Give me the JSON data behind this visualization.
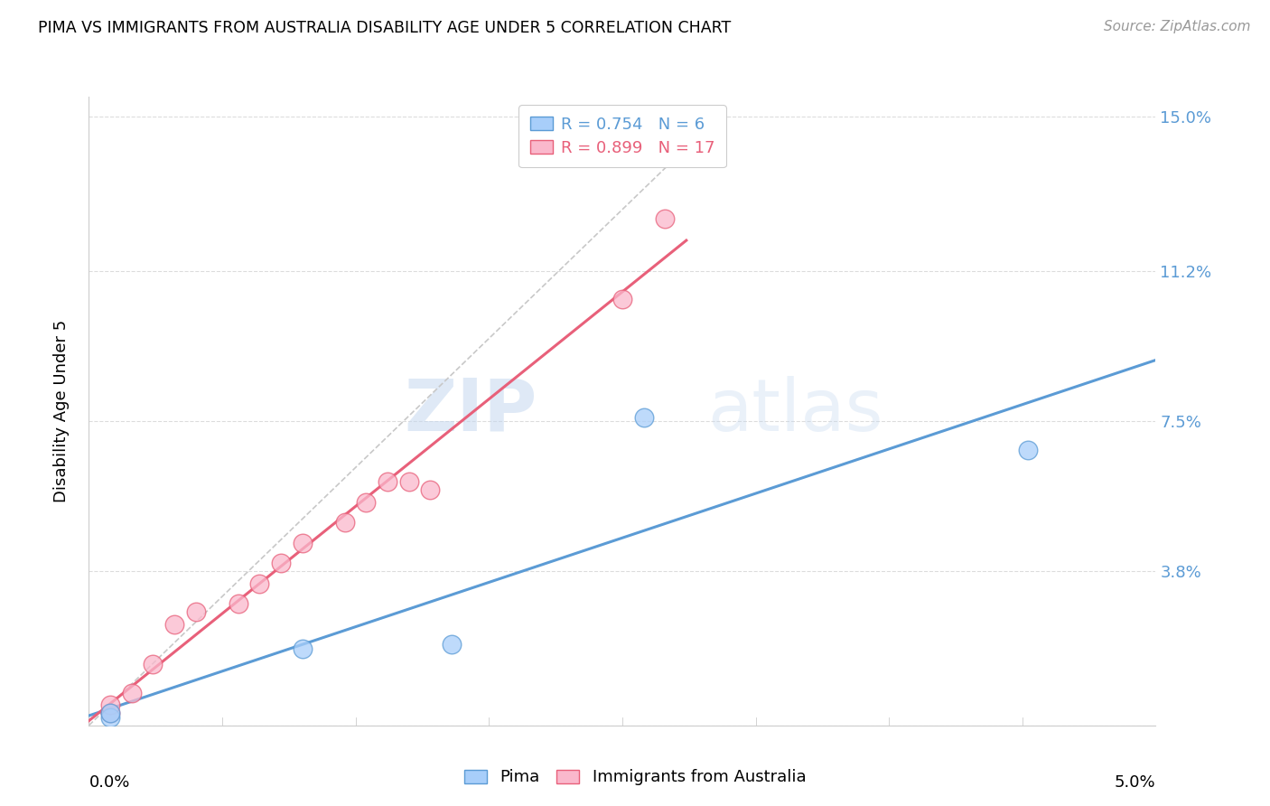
{
  "title": "PIMA VS IMMIGRANTS FROM AUSTRALIA DISABILITY AGE UNDER 5 CORRELATION CHART",
  "source": "Source: ZipAtlas.com",
  "ylabel": "Disability Age Under 5",
  "yticks": [
    0.0,
    0.038,
    0.075,
    0.112,
    0.15
  ],
  "ytick_labels": [
    "",
    "3.8%",
    "7.5%",
    "11.2%",
    "15.0%"
  ],
  "xmin": 0.0,
  "xmax": 0.05,
  "ymin": 0.0,
  "ymax": 0.155,
  "pima_color": "#A8CEFA",
  "aus_color": "#FAB8CC",
  "pima_line_color": "#5B9BD5",
  "aus_line_color": "#E8607A",
  "trendline_dashed_color": "#C8C8C8",
  "legend_pima_R": "0.754",
  "legend_pima_N": "6",
  "legend_aus_R": "0.899",
  "legend_aus_N": "17",
  "pima_x": [
    0.001,
    0.001,
    0.01,
    0.017,
    0.026,
    0.044
  ],
  "pima_y": [
    0.002,
    0.003,
    0.019,
    0.02,
    0.076,
    0.068
  ],
  "aus_x": [
    0.001,
    0.001,
    0.002,
    0.003,
    0.004,
    0.005,
    0.007,
    0.008,
    0.009,
    0.01,
    0.012,
    0.013,
    0.014,
    0.015,
    0.016,
    0.025,
    0.027
  ],
  "aus_y": [
    0.003,
    0.005,
    0.008,
    0.015,
    0.025,
    0.028,
    0.03,
    0.035,
    0.04,
    0.045,
    0.05,
    0.055,
    0.06,
    0.06,
    0.058,
    0.105,
    0.125
  ],
  "watermark_zip": "ZIP",
  "watermark_atlas": "atlas",
  "background_color": "#FFFFFF",
  "grid_color": "#DCDCDC"
}
